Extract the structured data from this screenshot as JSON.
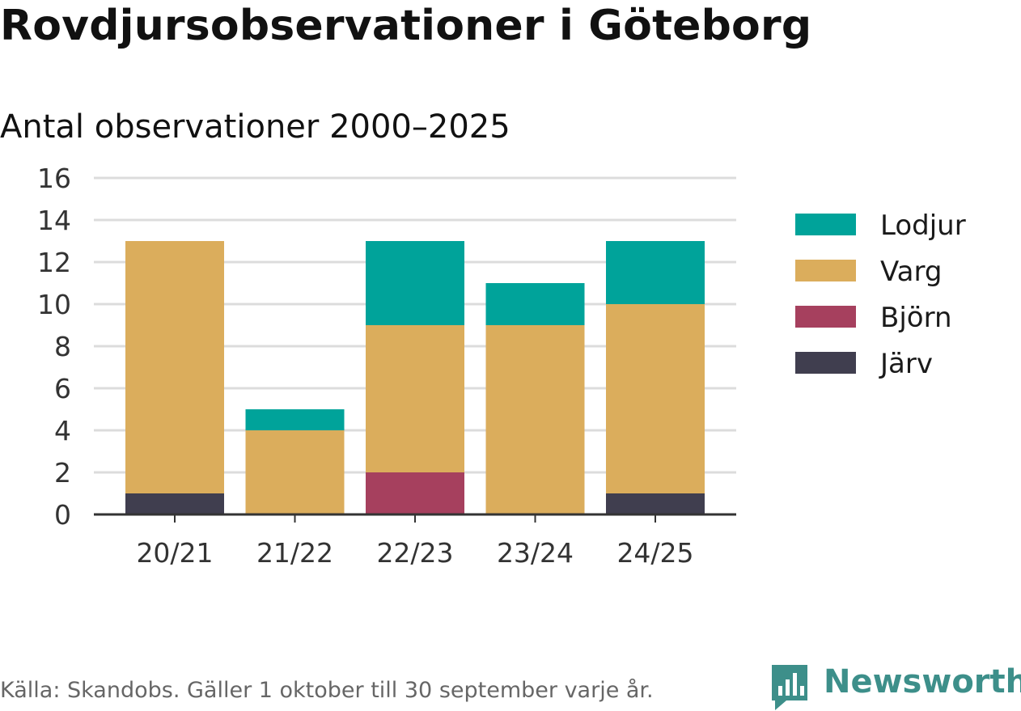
{
  "title": "Rovdjursobservationer i Göteborg",
  "subtitle": "Antal observationer 2000–2025",
  "footer": "Källa: Skandobs. Gäller 1 oktober till 30 september varje år.",
  "brand": "Newsworthy",
  "colors": {
    "Lodjur": "#00a39a",
    "Varg": "#dbad5c",
    "Björn": "#a6405e",
    "Järv": "#403e4f",
    "grid": "#dcdcdc",
    "axis": "#333333",
    "brand": "#3d8f8a"
  },
  "chart_data": {
    "type": "bar",
    "stacked": true,
    "title": "Rovdjursobservationer i Göteborg",
    "subtitle": "Antal observationer 2000–2025",
    "xlabel": "",
    "ylabel": "",
    "ylim": [
      0,
      16
    ],
    "yticks": [
      0,
      2,
      4,
      6,
      8,
      10,
      12,
      14,
      16
    ],
    "grid": true,
    "legend_position": "right",
    "categories": [
      "20/21",
      "21/22",
      "22/23",
      "23/24",
      "24/25"
    ],
    "series": [
      {
        "name": "Järv",
        "values": [
          1,
          0,
          0,
          0,
          1
        ]
      },
      {
        "name": "Björn",
        "values": [
          0,
          0,
          2,
          0,
          0
        ]
      },
      {
        "name": "Varg",
        "values": [
          12,
          4,
          7,
          9,
          9
        ]
      },
      {
        "name": "Lodjur",
        "values": [
          0,
          1,
          4,
          2,
          3
        ]
      }
    ],
    "legend_order": [
      "Lodjur",
      "Varg",
      "Björn",
      "Järv"
    ]
  }
}
